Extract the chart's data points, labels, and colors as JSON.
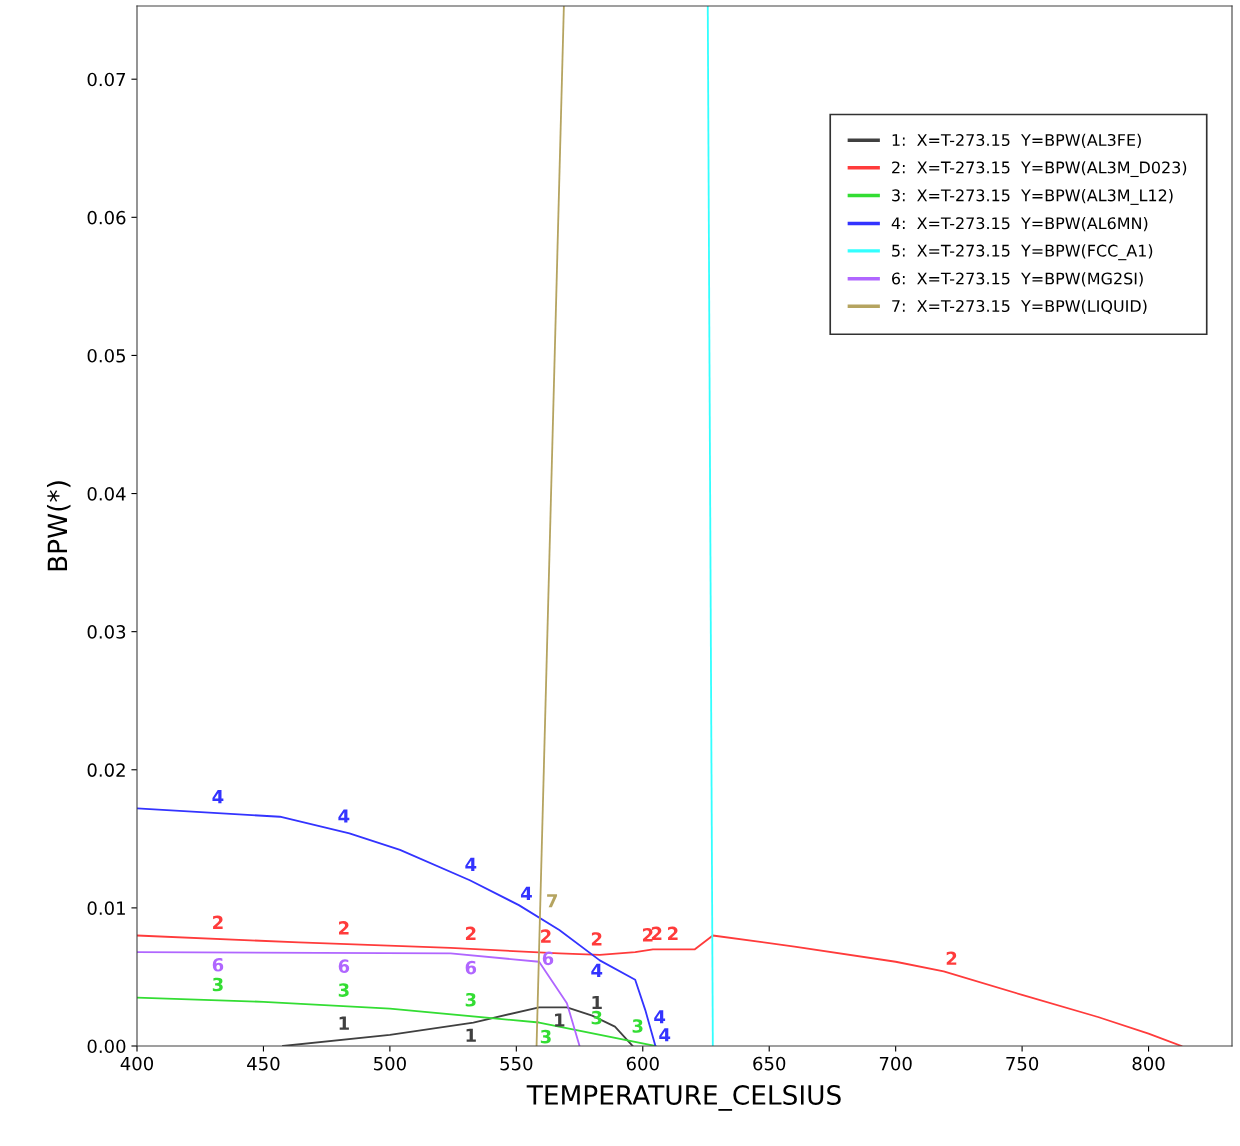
{
  "chart_data": {
    "type": "line",
    "xlabel": "TEMPERATURE_CELSIUS",
    "ylabel": "BPW(*)",
    "xlim": [
      400,
      833
    ],
    "ylim": [
      0,
      0.0753
    ],
    "xticks": [
      400,
      450,
      500,
      550,
      600,
      650,
      700,
      750,
      800
    ],
    "yticks": [
      {
        "value": 0,
        "label": "0.00"
      },
      {
        "value": 0.01,
        "label": "0.01"
      },
      {
        "value": 0.02,
        "label": "0.02"
      },
      {
        "value": 0.03,
        "label": "0.03"
      },
      {
        "value": 0.04,
        "label": "0.04"
      },
      {
        "value": 0.05,
        "label": "0.05"
      },
      {
        "value": 0.06,
        "label": "0.06"
      },
      {
        "value": 0.07,
        "label": "0.07"
      }
    ],
    "grid": false,
    "legend": "top right",
    "marker": "none",
    "line_style": "solid",
    "series": [
      {
        "name": "1:  X=T-273.15  Y=BPW(AL3FE)",
        "color": "#404040",
        "x": [
          457.7,
          500,
          533,
          559,
          570,
          580,
          589,
          596
        ],
        "values": [
          0,
          0.0008,
          0.0017,
          0.0028,
          0.0028,
          0.0022,
          0.0014,
          0
        ]
      },
      {
        "name": "2:  X=T-273.15  Y=BPW(AL3M_D023)",
        "color": "#ff3b3b",
        "x": [
          400,
          464,
          524,
          567,
          583,
          597,
          604,
          609,
          620.6,
          627.7,
          660,
          700,
          719,
          750,
          780,
          800,
          813
        ],
        "values": [
          0.008,
          0.0075,
          0.0071,
          0.0067,
          0.0066,
          0.0068,
          0.007,
          0.007,
          0.007,
          0.008,
          0.0072,
          0.0061,
          0.0054,
          0.0037,
          0.0021,
          0.0009,
          0
        ]
      },
      {
        "name": "3:  X=T-273.15  Y=BPW(AL3M_L12)",
        "color": "#33dd33",
        "x": [
          400,
          450,
          500,
          559,
          605
        ],
        "values": [
          0.0035,
          0.0032,
          0.0027,
          0.0017,
          0
        ]
      },
      {
        "name": "4:  X=T-273.15  Y=BPW(AL6MN)",
        "color": "#3333ff",
        "x": [
          400,
          456.5,
          484,
          504,
          531.6,
          551,
          567,
          583,
          597,
          601,
          605
        ],
        "values": [
          0.0172,
          0.0166,
          0.0154,
          0.0142,
          0.012,
          0.0102,
          0.0084,
          0.0062,
          0.0048,
          0.0026,
          0
        ]
      },
      {
        "name": "5:  X=T-273.15  Y=BPW(FCC_A1)",
        "color": "#33ffff",
        "x": [
          627.7,
          625.7
        ],
        "values": [
          0,
          0.0753
        ]
      },
      {
        "name": "6:  X=T-273.15  Y=BPW(MG2SI)",
        "color": "#b066ff",
        "x": [
          400,
          524,
          559,
          570,
          575
        ],
        "values": [
          0.0068,
          0.0067,
          0.0061,
          0.0031,
          0
        ]
      },
      {
        "name": "7:  X=T-273.15  Y=BPW(LIQUID)",
        "color": "#b5a460",
        "x": [
          558,
          568.8
        ],
        "values": [
          0,
          0.0753
        ]
      }
    ],
    "annotations": [
      {
        "text": "4",
        "x": 432.0,
        "y": 0.0169
      },
      {
        "text": "4",
        "x": 481.8,
        "y": 0.0155
      },
      {
        "text": "4",
        "x": 532.0,
        "y": 0.012
      },
      {
        "text": "4",
        "x": 554.0,
        "y": 0.0099
      },
      {
        "text": "4",
        "x": 581.8,
        "y": 0.0064
      },
      {
        "text": "4",
        "x": 602.0,
        "y": 0.002
      },
      {
        "text": "4",
        "x": 604.0,
        "y": 0.0007
      },
      {
        "text": "2",
        "x": 432.0,
        "y": 0.0078
      },
      {
        "text": "2",
        "x": 481.8,
        "y": 0.0074
      },
      {
        "text": "2",
        "x": 532.0,
        "y": 0.007
      },
      {
        "text": "2",
        "x": 561.7,
        "y": 0.0068
      },
      {
        "text": "2",
        "x": 581.8,
        "y": 0.0066
      },
      {
        "text": "2",
        "x": 602.0,
        "y": 0.0069
      },
      {
        "text": "2",
        "x": 605.5,
        "y": 0.007
      },
      {
        "text": "2",
        "x": 611.9,
        "y": 0.007
      },
      {
        "text": "2",
        "x": 722.1,
        "y": 0.0052
      },
      {
        "text": "6",
        "x": 432.0,
        "y": 0.0068
      },
      {
        "text": "6",
        "x": 481.8,
        "y": 0.0067
      },
      {
        "text": "6",
        "x": 532.0,
        "y": 0.0066
      },
      {
        "text": "6",
        "x": 562.5,
        "y": 0.0052
      },
      {
        "text": "3",
        "x": 432.0,
        "y": 0.0033
      },
      {
        "text": "3",
        "x": 481.8,
        "y": 0.0029
      },
      {
        "text": "3",
        "x": 532.0,
        "y": 0.0022
      },
      {
        "text": "3",
        "x": 561.7,
        "y": 0.0016
      },
      {
        "text": "3",
        "x": 581.8,
        "y": 0.0009
      },
      {
        "text": "3",
        "x": 598.0,
        "y": 0.0003
      },
      {
        "text": "1",
        "x": 481.8,
        "y": 0.0005
      },
      {
        "text": "1",
        "x": 532.0,
        "y": 0.0017
      },
      {
        "text": "1",
        "x": 567.0,
        "y": 0.0028
      },
      {
        "text": "1",
        "x": 581.8,
        "y": 0.002
      },
      {
        "text": "7",
        "x": 559.5,
        "y": 0.0104
      }
    ]
  }
}
